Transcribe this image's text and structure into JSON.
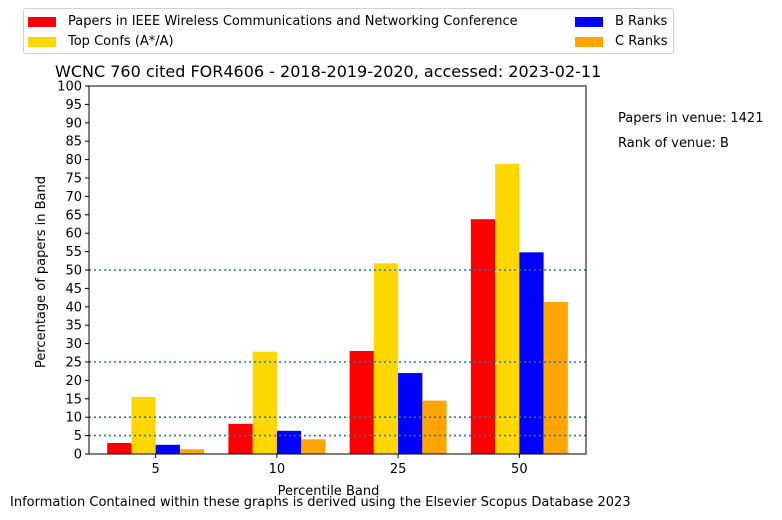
{
  "chart_data": {
    "type": "bar",
    "title": "WCNC 760 cited FOR4606 - 2018-2019-2020, accessed: 2023-02-11",
    "xlabel": "Percentile Band",
    "ylabel": "Percentage of papers in Band",
    "categories": [
      "5",
      "10",
      "25",
      "50"
    ],
    "ylim": [
      0,
      100
    ],
    "yticks": [
      0,
      5,
      10,
      15,
      20,
      25,
      30,
      35,
      40,
      45,
      50,
      55,
      60,
      65,
      70,
      75,
      80,
      85,
      90,
      95,
      100
    ],
    "reference_lines": [
      5,
      10,
      25,
      50
    ],
    "reference_line_color": "#1f77b4",
    "legend_position": "top",
    "grid": false,
    "series": [
      {
        "name": "Papers in IEEE Wireless Communications and Networking Conference",
        "color": "#ff0000",
        "values": [
          3.0,
          8.2,
          28.0,
          63.8
        ]
      },
      {
        "name": "Top Confs (A*/A)",
        "color": "#ffd700",
        "values": [
          15.5,
          27.8,
          51.8,
          78.8
        ]
      },
      {
        "name": "B Ranks",
        "color": "#0000ff",
        "values": [
          2.5,
          6.3,
          22.0,
          54.8
        ]
      },
      {
        "name": "C Ranks",
        "color": "#ffa500",
        "values": [
          1.3,
          4.0,
          14.5,
          41.3
        ]
      }
    ]
  },
  "legend": {
    "entries": [
      "Papers in IEEE Wireless Communications and Networking Conference",
      "Top Confs (A*/A)",
      "B Ranks",
      "C Ranks"
    ]
  },
  "side_info": {
    "papers_in_venue": "Papers in venue: 1421",
    "rank_of_venue": "Rank of venue: B"
  },
  "footer": "Information Contained within these graphs is derived using the Elsevier Scopus Database 2023"
}
